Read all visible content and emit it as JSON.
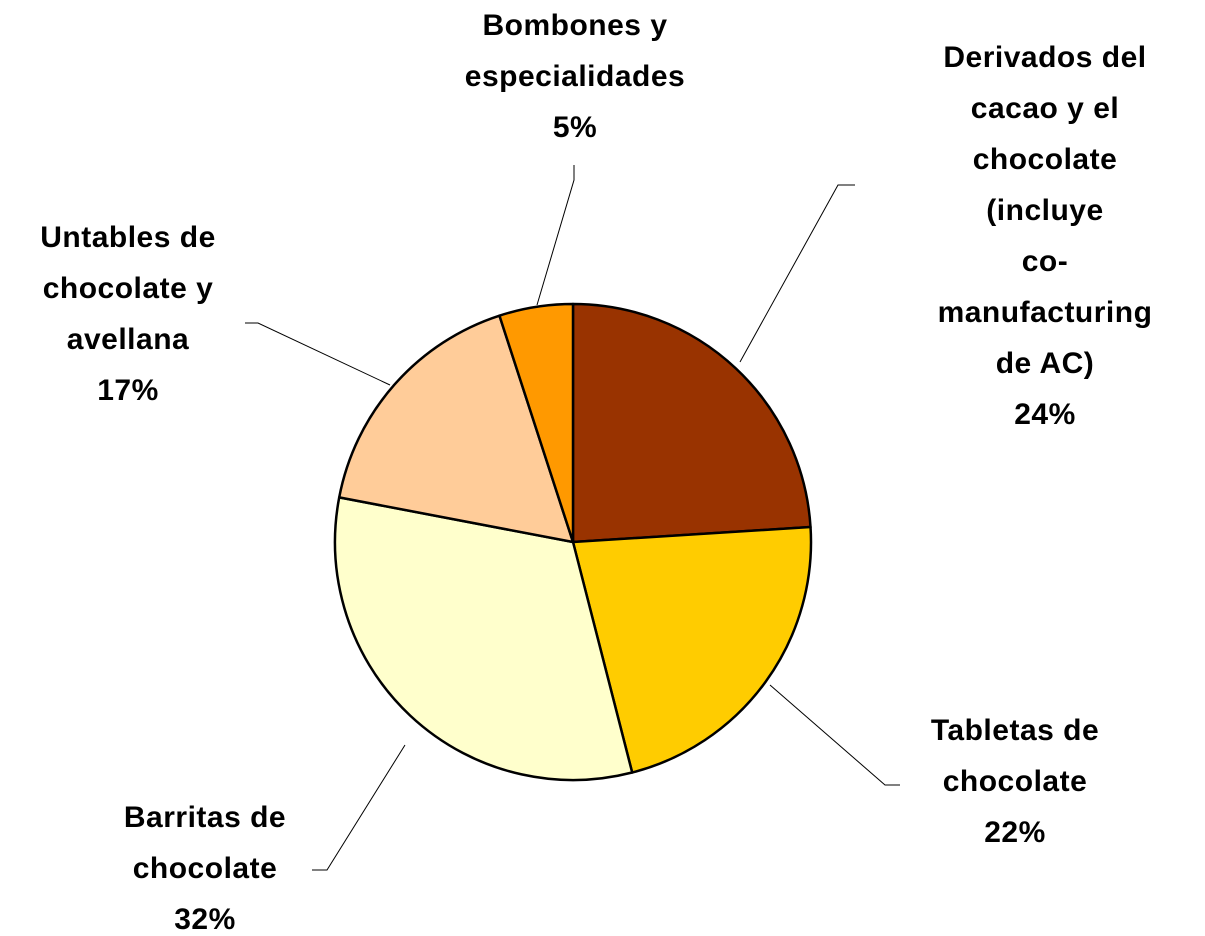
{
  "chart_data": {
    "type": "pie",
    "categories": [
      "Derivados del\ncacao y el\nchocolate (incluye\nco-manufacturing\nde AC)",
      "Tabletas de\nchocolate",
      "Barritas de\nchocolate",
      "Untables de\nchocolate y\navellana",
      "Bombones y\nespecialidades"
    ],
    "values": [
      24,
      22,
      32,
      17,
      5
    ],
    "value_labels": [
      "24%",
      "22%",
      "32%",
      "17%",
      "5%"
    ],
    "colors": [
      "#993300",
      "#ffcc00",
      "#ffffcc",
      "#ffcc99",
      "#ff9900"
    ]
  }
}
